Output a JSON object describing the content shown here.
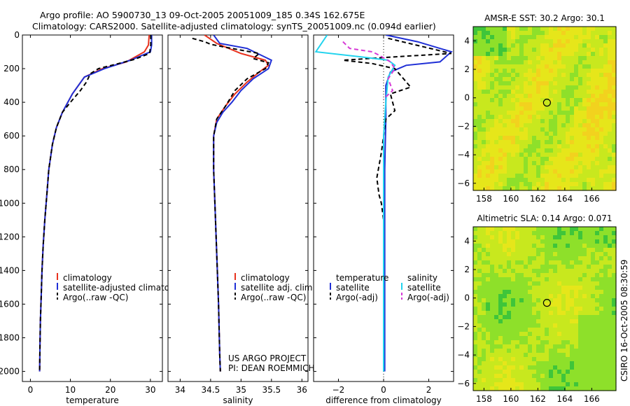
{
  "header": {
    "title_line1": "Argo profile: AO 5900730_13 09-Oct-2005 20051009_185 0.34S 162.675E",
    "title_line2": "Climatology: CARS2000. Satellite-adjusted climatology: synTS_20051009.nc (0.094d earlier)"
  },
  "side_label": "CSIRO 16-Oct-2005 08:30:59",
  "credit": {
    "line1": "US ARGO PROJECT",
    "line2": "PI: DEAN ROEMMICH"
  },
  "colors": {
    "climatology": "#e8321e",
    "satellite": "#1f2fd6",
    "argo": "#000000",
    "sat_salinity": "#22d3ee",
    "argo_adj_salinity": "#d63ad6"
  },
  "chart_data": [
    {
      "type": "line",
      "id": "temperature",
      "xlabel": "temperature",
      "ylabel": "",
      "xlim": [
        -2,
        33
      ],
      "ylim": [
        2060,
        0
      ],
      "xticks": [
        0,
        10,
        20,
        30
      ],
      "xtick_labels": [
        "0",
        "10",
        "20",
        "30"
      ],
      "yticks": [
        0,
        200,
        400,
        600,
        800,
        1000,
        1200,
        1400,
        1600,
        1800,
        2000
      ],
      "ytick_labels": [
        "0",
        "200",
        "400",
        "600",
        "800",
        "1000",
        "1200",
        "1400",
        "1600",
        "1800",
        "2000"
      ],
      "legend": [
        "climatology",
        "satellite-adjusted climatology",
        "Argo(..raw -QC)"
      ],
      "series": [
        {
          "name": "climatology",
          "color": "#e8321e",
          "dash": "",
          "points": [
            [
              29.7,
              0
            ],
            [
              29.5,
              60
            ],
            [
              28.5,
              100
            ],
            [
              24,
              160
            ],
            [
              18,
              200
            ],
            [
              13.5,
              250
            ],
            [
              10.5,
              350
            ],
            [
              8,
              460
            ],
            [
              6.5,
              550
            ],
            [
              5.5,
              650
            ],
            [
              4.6,
              800
            ],
            [
              4.1,
              950
            ],
            [
              3.6,
              1100
            ],
            [
              3.2,
              1250
            ],
            [
              2.9,
              1400
            ],
            [
              2.7,
              1550
            ],
            [
              2.5,
              1700
            ],
            [
              2.4,
              1850
            ],
            [
              2.3,
              2000
            ]
          ]
        },
        {
          "name": "satellite-adjusted climatology",
          "color": "#1f2fd6",
          "dash": "",
          "points": [
            [
              30.3,
              0
            ],
            [
              30.3,
              60
            ],
            [
              30,
              100
            ],
            [
              25,
              150
            ],
            [
              18.5,
              200
            ],
            [
              13.5,
              250
            ],
            [
              10.5,
              350
            ],
            [
              8,
              460
            ],
            [
              6.5,
              550
            ],
            [
              5.5,
              650
            ],
            [
              4.6,
              800
            ],
            [
              4.1,
              950
            ],
            [
              3.6,
              1100
            ],
            [
              3.2,
              1250
            ],
            [
              2.9,
              1400
            ],
            [
              2.7,
              1550
            ],
            [
              2.5,
              1700
            ],
            [
              2.4,
              1850
            ],
            [
              2.3,
              2000
            ]
          ]
        },
        {
          "name": "Argo(..raw -QC)",
          "color": "#000000",
          "dash": "6,4",
          "points": [
            [
              30.1,
              0
            ],
            [
              30.1,
              60
            ],
            [
              29.8,
              110
            ],
            [
              26,
              145
            ],
            [
              22,
              170
            ],
            [
              17,
              200
            ],
            [
              15,
              230
            ],
            [
              14,
              280
            ],
            [
              12.5,
              330
            ],
            [
              10,
              400
            ],
            [
              8,
              460
            ],
            [
              6.5,
              550
            ],
            [
              5.5,
              650
            ],
            [
              4.6,
              800
            ],
            [
              4.1,
              950
            ],
            [
              3.6,
              1100
            ],
            [
              3.2,
              1250
            ],
            [
              2.9,
              1400
            ],
            [
              2.7,
              1550
            ],
            [
              2.5,
              1700
            ],
            [
              2.4,
              1850
            ],
            [
              2.3,
              2000
            ]
          ]
        }
      ]
    },
    {
      "type": "line",
      "id": "salinity",
      "xlabel": "salinity",
      "ylabel": "",
      "xlim": [
        33.8,
        36.1
      ],
      "ylim": [
        2060,
        0
      ],
      "xticks": [
        34,
        34.5,
        35,
        35.5,
        36
      ],
      "xtick_labels": [
        "34",
        "34.5",
        "35",
        "35.5",
        "36"
      ],
      "legend": [
        "climatology",
        "satellite adj. clim.",
        "Argo(..raw -QC)"
      ],
      "series": [
        {
          "name": "climatology",
          "color": "#e8321e",
          "dash": "",
          "points": [
            [
              34.4,
              0
            ],
            [
              34.6,
              50
            ],
            [
              35.0,
              110
            ],
            [
              35.4,
              150
            ],
            [
              35.45,
              180
            ],
            [
              35.3,
              220
            ],
            [
              35.1,
              280
            ],
            [
              34.9,
              350
            ],
            [
              34.75,
              420
            ],
            [
              34.6,
              500
            ],
            [
              34.55,
              600
            ],
            [
              34.55,
              800
            ],
            [
              34.57,
              1000
            ],
            [
              34.6,
              1300
            ],
            [
              34.63,
              1600
            ],
            [
              34.65,
              1900
            ],
            [
              34.66,
              2000
            ]
          ]
        },
        {
          "name": "satellite adj. clim.",
          "color": "#1f2fd6",
          "dash": "",
          "points": [
            [
              34.55,
              0
            ],
            [
              34.65,
              50
            ],
            [
              35.1,
              80
            ],
            [
              35.5,
              150
            ],
            [
              35.45,
              200
            ],
            [
              35.2,
              260
            ],
            [
              35,
              330
            ],
            [
              34.85,
              400
            ],
            [
              34.7,
              460
            ],
            [
              34.6,
              520
            ],
            [
              34.55,
              600
            ],
            [
              34.55,
              800
            ],
            [
              34.57,
              1000
            ],
            [
              34.6,
              1300
            ],
            [
              34.63,
              1600
            ],
            [
              34.65,
              1900
            ],
            [
              34.66,
              2000
            ]
          ]
        },
        {
          "name": "Argo(..raw -QC)",
          "color": "#000000",
          "dash": "6,4",
          "points": [
            [
              34.2,
              20
            ],
            [
              34.4,
              40
            ],
            [
              34.5,
              55
            ],
            [
              34.7,
              70
            ],
            [
              35.0,
              90
            ],
            [
              35.3,
              110
            ],
            [
              35.2,
              140
            ],
            [
              35.45,
              165
            ],
            [
              35.4,
              200
            ],
            [
              35.1,
              260
            ],
            [
              34.9,
              330
            ],
            [
              34.75,
              420
            ],
            [
              34.6,
              500
            ],
            [
              34.55,
              600
            ],
            [
              34.55,
              800
            ],
            [
              34.57,
              1000
            ],
            [
              34.6,
              1300
            ],
            [
              34.63,
              1600
            ],
            [
              34.65,
              1900
            ],
            [
              34.66,
              2000
            ]
          ]
        }
      ]
    },
    {
      "type": "line",
      "id": "difference",
      "xlabel": "difference from climatology",
      "ylabel": "",
      "xlim": [
        -3.1,
        3.1
      ],
      "ylim": [
        2060,
        0
      ],
      "xticks": [
        -2,
        0,
        2
      ],
      "xtick_labels": [
        "−2",
        "0",
        "2"
      ],
      "legend": [
        "temperature",
        "satellite",
        "Argo(-adj)",
        "salinity",
        "satellite",
        "Argo(-adj)"
      ],
      "series": [
        {
          "name": "temperature satellite",
          "color": "#1f2fd6",
          "dash": "",
          "points": [
            [
              0.1,
              0
            ],
            [
              1.5,
              40
            ],
            [
              3,
              100
            ],
            [
              2.5,
              160
            ],
            [
              1,
              180
            ],
            [
              0.3,
              220
            ],
            [
              0.1,
              300
            ],
            [
              0.1,
              500
            ],
            [
              0.05,
              800
            ],
            [
              0.05,
              1200
            ],
            [
              0.05,
              1600
            ],
            [
              0.05,
              2000
            ]
          ]
        },
        {
          "name": "temperature Argo(-adj)",
          "color": "#000000",
          "dash": "6,4",
          "points": [
            [
              0.2,
              20
            ],
            [
              3,
              110
            ],
            [
              0.5,
              130
            ],
            [
              -1.8,
              150
            ],
            [
              -0.5,
              170
            ],
            [
              0.5,
              200
            ],
            [
              1.2,
              310
            ],
            [
              0.3,
              350
            ],
            [
              0.5,
              450
            ],
            [
              0.1,
              500
            ],
            [
              -0.1,
              700
            ],
            [
              -0.3,
              850
            ],
            [
              -0.2,
              950
            ],
            [
              -0.1,
              1000
            ],
            [
              0,
              1100
            ],
            [
              0,
              1600
            ],
            [
              0,
              2000
            ]
          ]
        },
        {
          "name": "salinity satellite",
          "color": "#22d3ee",
          "dash": "",
          "points": [
            [
              -2.5,
              0
            ],
            [
              -3,
              100
            ],
            [
              -1,
              130
            ],
            [
              0.2,
              150
            ],
            [
              0.5,
              180
            ],
            [
              0.2,
              250
            ],
            [
              0.1,
              400
            ],
            [
              0,
              600
            ],
            [
              0,
              900
            ],
            [
              0,
              1200
            ],
            [
              0,
              1600
            ],
            [
              0,
              2000
            ]
          ]
        },
        {
          "name": "salinity Argo(-adj)",
          "color": "#d63ad6",
          "dash": "6,4",
          "points": [
            [
              -1.8,
              40
            ],
            [
              -1.5,
              80
            ],
            [
              -0.5,
              100
            ],
            [
              -0.2,
              120
            ],
            [
              0.3,
              160
            ],
            [
              0.5,
              200
            ],
            [
              0.2,
              260
            ],
            [
              0.4,
              330
            ],
            [
              0,
              380
            ]
          ]
        }
      ]
    },
    {
      "type": "heatmap",
      "id": "sst_map",
      "title": "AMSR-E SST: 30.2  Argo: 30.1",
      "xticks": [
        158,
        160,
        162,
        164,
        166
      ],
      "yticks": [
        4,
        2,
        0,
        -2,
        -4,
        -6
      ],
      "ytick_labels": [
        "4",
        "2",
        "0",
        "−2",
        "−4",
        "−6"
      ],
      "xlim": [
        157.2,
        167.8
      ],
      "ylim": [
        -6.5,
        5
      ],
      "float_position": [
        162.675,
        -0.34
      ],
      "colors": [
        "#3fc53a",
        "#8ee02a",
        "#c8e81e",
        "#e6e61a",
        "#f2d21e",
        "#f4b62a"
      ]
    },
    {
      "type": "heatmap",
      "id": "sla_map",
      "title": "Altimetric SLA: 0.14  Argo: 0.071",
      "xticks": [
        158,
        160,
        162,
        164,
        166
      ],
      "yticks": [
        4,
        2,
        0,
        -2,
        -4,
        -6
      ],
      "ytick_labels": [
        "4",
        "2",
        "0",
        "−2",
        "−4",
        "−6"
      ],
      "xlim": [
        157.2,
        167.8
      ],
      "ylim": [
        -6.5,
        5
      ],
      "float_position": [
        162.675,
        -0.34
      ],
      "colors": [
        "#3fc53a",
        "#8ee02a",
        "#c8e81e",
        "#e6e61a",
        "#f2d21e",
        "#f4b62a"
      ]
    }
  ]
}
